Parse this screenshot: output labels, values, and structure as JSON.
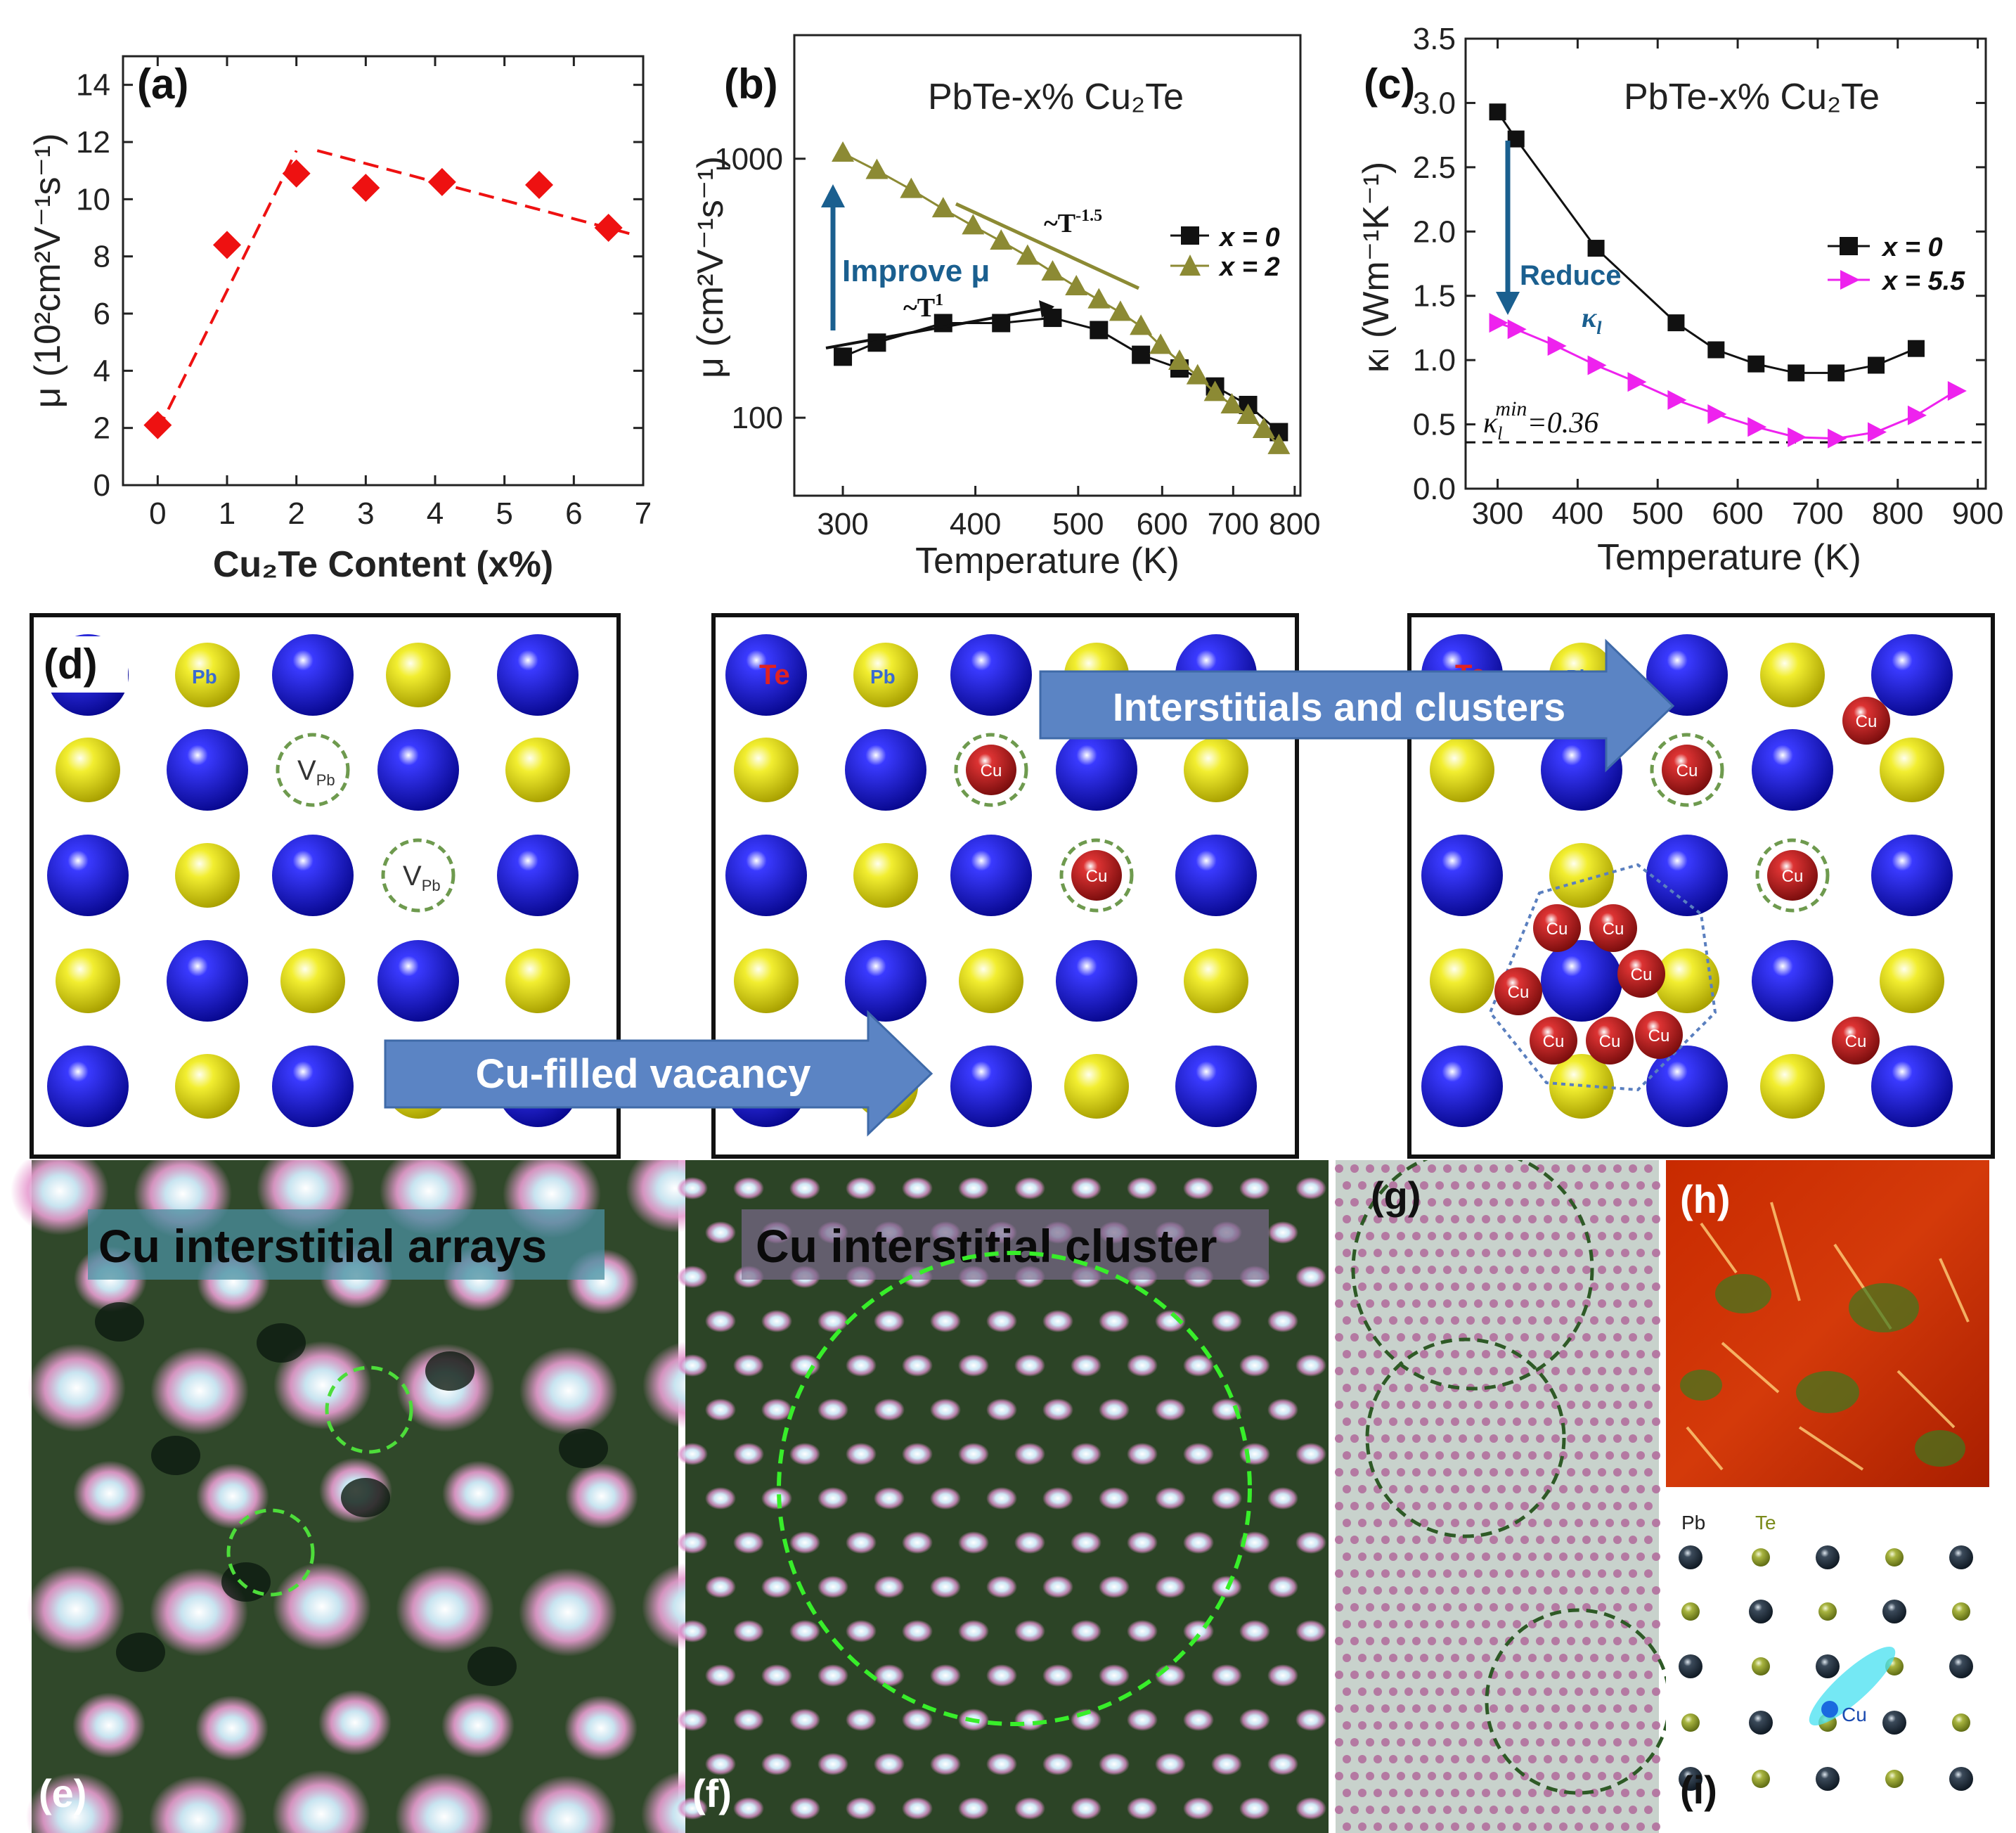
{
  "chart_data": [
    {
      "panel": "(a)",
      "type": "scatter",
      "xlabel": "Cu₂Te Content (x%)",
      "ylabel": "μ (10²cm²V⁻¹s⁻¹)",
      "xlim": [
        -0.5,
        7
      ],
      "ylim": [
        0,
        15
      ],
      "xticks": [
        "0",
        "1",
        "2",
        "3",
        "4",
        "5",
        "6",
        "7"
      ],
      "yticks": [
        "0",
        "2",
        "4",
        "6",
        "8",
        "10",
        "12",
        "14"
      ],
      "x": [
        0,
        1,
        2,
        3,
        4.1,
        5.5,
        6.5
      ],
      "y": [
        2.1,
        8.4,
        10.9,
        10.4,
        10.6,
        10.5,
        9.0
      ],
      "color": "#ee1111",
      "trend_lines": [
        {
          "x": [
            0,
            2
          ],
          "y": [
            1.9,
            11.7
          ]
        },
        {
          "x": [
            2.3,
            6.8
          ],
          "y": [
            11.7,
            8.8
          ]
        }
      ]
    },
    {
      "panel": "(b)",
      "type": "line",
      "log_y": true,
      "xlabel": "Temperature (K)",
      "ylabel": "μ (cm²V⁻¹s⁻¹)",
      "xlim": [
        270,
        810
      ],
      "ylim": [
        50,
        3000
      ],
      "xticks": [
        "300",
        "400",
        "500",
        "600",
        "700",
        "800"
      ],
      "yticks": [
        "100",
        "1000"
      ],
      "title": "PbTe-x% Cu₂Te",
      "series": [
        {
          "name": "x = 0",
          "color": "#111111",
          "marker": "square",
          "x": [
            300,
            323,
            373,
            423,
            473,
            523,
            573,
            623,
            673,
            723,
            773
          ],
          "y": [
            172,
            195,
            232,
            232,
            243,
            218,
            175,
            155,
            132,
            112,
            88
          ]
        },
        {
          "name": "x = 2",
          "color": "#8c8a34",
          "marker": "triangle",
          "x": [
            300,
            323,
            348,
            373,
            398,
            423,
            448,
            473,
            498,
            523,
            548,
            573,
            598,
            623,
            648,
            673,
            698,
            723,
            748,
            773
          ],
          "y": [
            1050,
            900,
            760,
            640,
            550,
            480,
            420,
            365,
            320,
            285,
            255,
            225,
            190,
            165,
            145,
            125,
            112,
            102,
            90,
            78
          ]
        }
      ],
      "annotations": {
        "improve": "Improve μ",
        "power_low": "~T",
        "power_low_exp": "1",
        "power_high": "~T",
        "power_high_exp": "-1.5"
      }
    },
    {
      "panel": "(c)",
      "type": "line",
      "xlabel": "Temperature (K)",
      "ylabel": "κₗ (Wm⁻¹K⁻¹)",
      "xlim": [
        260,
        910
      ],
      "ylim": [
        0,
        3.5
      ],
      "xticks": [
        "300",
        "400",
        "500",
        "600",
        "700",
        "800",
        "900"
      ],
      "yticks": [
        "0.0",
        "0.5",
        "1.0",
        "1.5",
        "2.0",
        "2.5",
        "3.0",
        "3.5"
      ],
      "title": "PbTe-x% Cu₂Te",
      "series": [
        {
          "name": "x = 0",
          "color": "#111111",
          "marker": "square",
          "x": [
            300,
            323,
            423,
            523,
            573,
            623,
            673,
            723,
            773,
            823
          ],
          "y": [
            2.93,
            2.72,
            1.87,
            1.29,
            1.08,
            0.97,
            0.9,
            0.9,
            0.96,
            1.09
          ]
        },
        {
          "name": "x = 5.5",
          "color": "#ee22ee",
          "marker": "triangle-right",
          "x": [
            300,
            323,
            373,
            423,
            473,
            523,
            573,
            623,
            673,
            723,
            773,
            823,
            873
          ],
          "y": [
            1.29,
            1.24,
            1.11,
            0.96,
            0.83,
            0.69,
            0.58,
            0.48,
            0.4,
            0.39,
            0.44,
            0.57,
            0.76
          ]
        }
      ],
      "kmin_value": 0.36,
      "annotations": {
        "reduce": "Reduce",
        "kappa_sym": "κ",
        "kappa_sub": "l",
        "kmin_base": "κ",
        "kmin_sub": "l",
        "kmin_sup": "min",
        "kmin_val": "=0.36"
      }
    }
  ],
  "panel_labels": {
    "a": "(a)",
    "b": "(b)",
    "c": "(c)",
    "d": "(d)",
    "e": "(e)",
    "f": "(f)",
    "g": "(g)",
    "h": "(h)",
    "i": "(i)"
  },
  "schematic": {
    "atom_pb": "Pb",
    "atom_te": "Te",
    "vacancy": "V",
    "vacancy_sub": "Pb",
    "cu": "Cu",
    "arrow_vacancy": "Cu-filled vacancy",
    "arrow_clusters": "Interstitials and clusters"
  },
  "images": {
    "e_title": "Cu interstitial arrays",
    "f_title": "Cu interstitial cluster",
    "i_pb": "Pb",
    "i_te": "Te",
    "i_cu": "Cu"
  },
  "colors": {
    "blue_atom": "#1a1ad0",
    "yellow_atom": "#e8e21a",
    "cu_atom": "#cc2222",
    "arrow_fill": "#5b84c4",
    "dashed_green": "#7a9a52",
    "stem_bg": "#30482a",
    "stem_spot": "#f0b8dc",
    "map_red": "#cc2200",
    "map_green": "#3a7a20"
  }
}
